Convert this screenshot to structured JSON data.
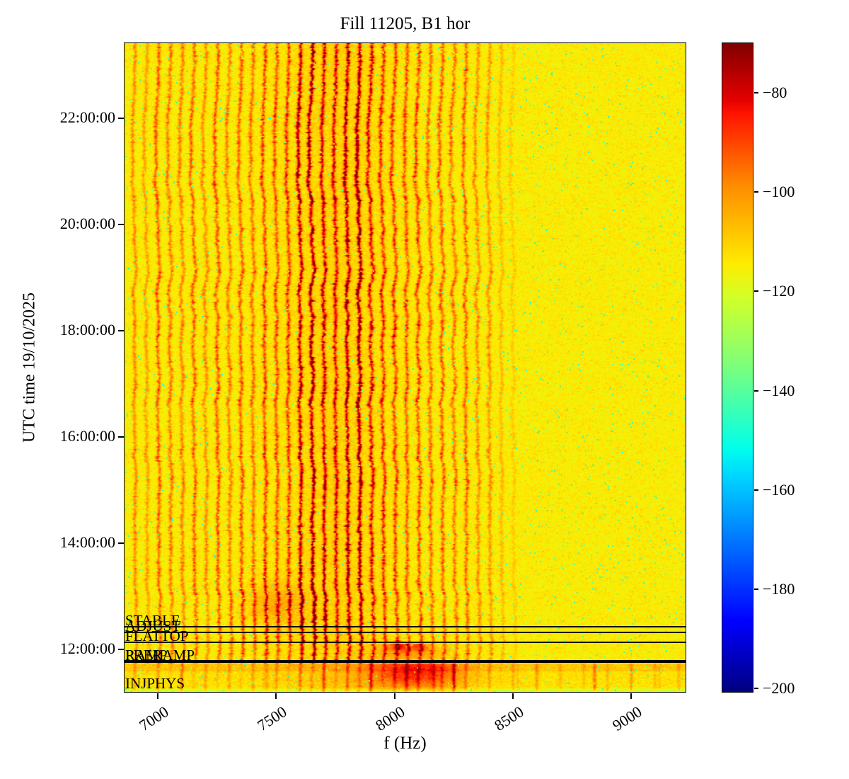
{
  "figure": {
    "title": "Fill 11205, B1 hor",
    "xlabel": "f (Hz)",
    "ylabel": "UTC time 19/10/2025"
  },
  "axes": {
    "x_ticks": [
      "7000",
      "7500",
      "8000",
      "8500",
      "9000"
    ],
    "y_ticks": [
      "22:00:00",
      "20:00:00",
      "18:00:00",
      "16:00:00",
      "14:00:00",
      "12:00:00"
    ]
  },
  "colorbar": {
    "ticks": [
      "−80",
      "−100",
      "−120",
      "−140",
      "−160",
      "−180",
      "−200"
    ]
  },
  "beam_modes": [
    {
      "label": "STABLE",
      "time_utc": "12:25:00"
    },
    {
      "label": "ADJUST",
      "time_utc": "12:19:00"
    },
    {
      "label": "FLATTOP",
      "time_utc": "12:08:00"
    },
    {
      "label": "RAMP",
      "time_utc": "11:46:00"
    },
    {
      "label": "PRERAMP",
      "time_utc": "11:45:00"
    },
    {
      "label": "INJPHYS",
      "time_utc": "11:11:00"
    }
  ],
  "chart_data": {
    "type": "heatmap",
    "title": "Fill 11205, B1 hor",
    "xlabel": "f (Hz)",
    "ylabel": "UTC time 19/10/2025",
    "x_range_hz": [
      6856,
      9234
    ],
    "x_tick_values_hz": [
      7000,
      7500,
      8000,
      8500,
      9000
    ],
    "y_tick_values_utc": [
      "22:00:00",
      "20:00:00",
      "18:00:00",
      "16:00:00",
      "14:00:00",
      "12:00:00"
    ],
    "y_time_range_utc": [
      "11:11:00",
      "23:25:00"
    ],
    "colorbar": {
      "colormap": "jet",
      "tick_values_db": [
        -80,
        -100,
        -120,
        -140,
        -160,
        -180,
        -200
      ],
      "value_range_db": [
        -201,
        -70
      ]
    },
    "background_level_db": -115,
    "spectral_lines": {
      "comment": "vertical 50 Hz harmonic lines, wavy in time; strongest dark-red cluster 7600-7900 Hz; clean above ~8500 Hz",
      "spacing_hz": 50,
      "peak_level_db": -76,
      "amplitudes": {
        "6900": 0.38,
        "6950": 0.3,
        "7000": 0.5,
        "7050": 0.42,
        "7100": 0.4,
        "7150": 0.48,
        "7200": 0.36,
        "7250": 0.52,
        "7300": 0.4,
        "7350": 0.5,
        "7400": 0.44,
        "7450": 0.58,
        "7500": 0.52,
        "7550": 0.58,
        "7600": 0.85,
        "7650": 0.95,
        "7700": 0.78,
        "7750": 0.72,
        "7800": 0.88,
        "7850": 1.0,
        "7900": 0.74,
        "7950": 0.62,
        "8000": 0.58,
        "8050": 0.52,
        "8100": 0.56,
        "8150": 0.46,
        "8200": 0.5,
        "8250": 0.44,
        "8300": 0.48,
        "8350": 0.36,
        "8400": 0.34,
        "8450": 0.2,
        "8500": 0.13
      }
    },
    "beam_mode_lines_utc": [
      {
        "label": "STABLE",
        "time_utc": "12:25:00"
      },
      {
        "label": "ADJUST",
        "time_utc": "12:19:00"
      },
      {
        "label": "FLATTOP",
        "time_utc": "12:08:00"
      },
      {
        "label": "RAMP",
        "time_utc": "11:46:00"
      },
      {
        "label": "PRERAMP",
        "time_utc": "11:45:00"
      },
      {
        "label": "INJPHYS",
        "time_utc": "11:11:00"
      }
    ],
    "notes": "diffuse red blob near 8000-8200 Hz during RAMP/injection period; short red strands near 8250 and 8845 Hz in INJPHYS band; greenish row at bottom edge"
  }
}
